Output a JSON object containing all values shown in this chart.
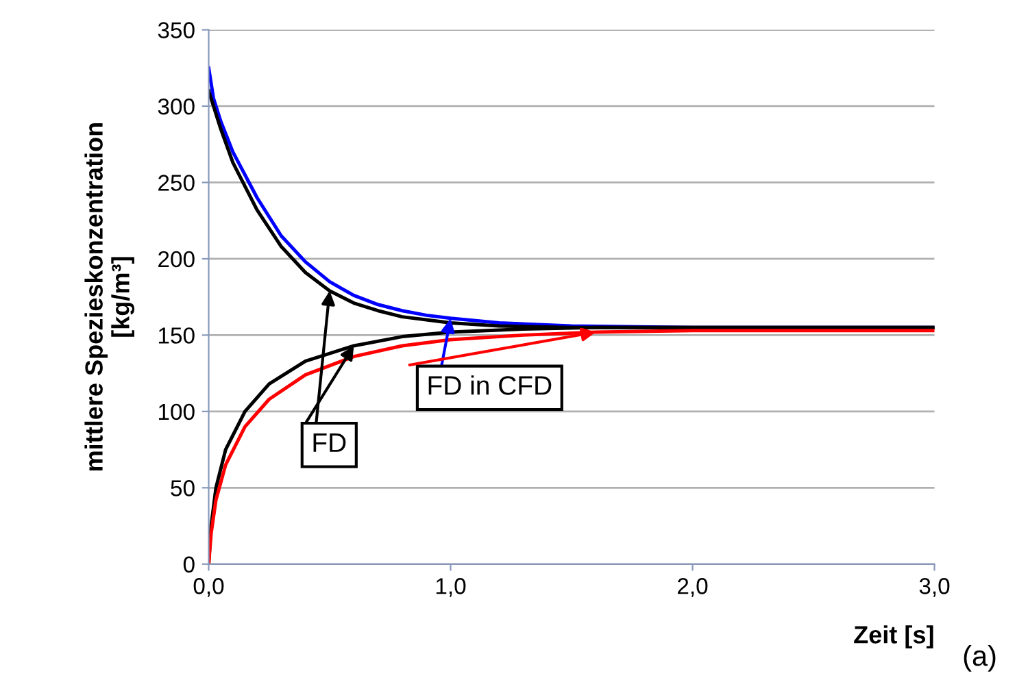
{
  "chart_data": {
    "type": "line",
    "xlabel": "Zeit [s]",
    "ylabel": "mittlere Spezieskonzentration\n[kg/m³]",
    "xlim": [
      0,
      3
    ],
    "xticks": [
      {
        "value": 0,
        "label": "0,0"
      },
      {
        "value": 1,
        "label": "1,0"
      },
      {
        "value": 2,
        "label": "2,0"
      },
      {
        "value": 3,
        "label": "3,0"
      }
    ],
    "ylim": [
      0,
      350
    ],
    "yticks": [
      0,
      50,
      100,
      150,
      200,
      250,
      300,
      350
    ],
    "grid": "y",
    "legend": false,
    "marker": "none",
    "line_style": "solid",
    "series": [
      {
        "color": "#0000ff",
        "x": [
          0,
          0.02,
          0.05,
          0.1,
          0.2,
          0.3,
          0.4,
          0.5,
          0.6,
          0.7,
          0.8,
          0.9,
          1.0,
          1.2,
          1.5,
          2.0,
          3.0
        ],
        "values": [
          325,
          305,
          290,
          270,
          240,
          215,
          198,
          185,
          176,
          170,
          166,
          163,
          161,
          158,
          156,
          155,
          155
        ]
      },
      {
        "color": "#000000",
        "x": [
          0,
          0.05,
          0.1,
          0.2,
          0.3,
          0.4,
          0.5,
          0.6,
          0.7,
          0.8,
          0.9,
          1.0,
          1.2,
          1.5,
          3.0
        ],
        "values": [
          310,
          285,
          263,
          232,
          208,
          191,
          179,
          171,
          166,
          162,
          160,
          158,
          156,
          155,
          155
        ]
      },
      {
        "color": "#000000",
        "x": [
          0,
          0.01,
          0.03,
          0.07,
          0.15,
          0.25,
          0.4,
          0.6,
          0.8,
          1.0,
          1.3,
          1.6,
          3.0
        ],
        "values": [
          0,
          25,
          50,
          75,
          100,
          118,
          133,
          143,
          149,
          152,
          154,
          155,
          155
        ]
      },
      {
        "color": "#ff0000",
        "x": [
          0,
          0.01,
          0.03,
          0.07,
          0.15,
          0.25,
          0.4,
          0.6,
          0.8,
          1.0,
          1.3,
          1.6,
          2.0,
          3.0
        ],
        "values": [
          0,
          20,
          42,
          65,
          90,
          108,
          124,
          136,
          143,
          147,
          150,
          152,
          153,
          153
        ]
      }
    ],
    "annotations": [
      {
        "text": "FD",
        "x": 0.5,
        "y": 179
      },
      {
        "text": "FD in CFD",
        "x": 1.0,
        "y": 161
      },
      "(a)"
    ]
  }
}
